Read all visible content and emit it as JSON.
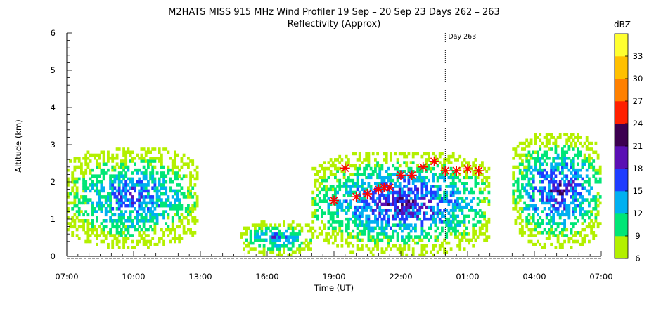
{
  "chart_data": {
    "type": "heatmap",
    "title": "M2HATS MISS 915 MHz Wind Profiler  19 Sep – 20 Sep 23 Days 262 – 263",
    "subtitle": "Reflectivity (Approx)",
    "xlabel": "Time (UT)",
    "ylabel": "Altitude (km)",
    "x_tick_labels": [
      "07:00",
      "10:00",
      "13:00",
      "16:00",
      "19:00",
      "22:00",
      "01:00",
      "04:00",
      "07:00"
    ],
    "x_ticks_hours": [
      0,
      3,
      6,
      9,
      12,
      15,
      18,
      21,
      24
    ],
    "xlim_hours": [
      0,
      24
    ],
    "y_ticks": [
      0,
      1,
      2,
      3,
      4,
      5,
      6
    ],
    "ylim": [
      0,
      6
    ],
    "day_marker": {
      "label": "Day 263",
      "hours": 17
    },
    "colorbar": {
      "unit": "dBZ",
      "bin_edges": [
        6,
        9,
        12,
        15,
        18,
        21,
        24,
        27,
        30,
        33
      ],
      "tick_labels": [
        "6",
        "9",
        "12",
        "15",
        "18",
        "21",
        "24",
        "27",
        "30",
        "33"
      ],
      "colors": [
        "#b3f000",
        "#00e676",
        "#00b0f0",
        "#1e3cff",
        "#5a0fb4",
        "#3c0050",
        "#ff2000",
        "#ff8000",
        "#ffc000",
        "#ffff30"
      ]
    },
    "regions": [
      {
        "name": "morning-layer",
        "x_hours": [
          0,
          5.8
        ],
        "y_km": [
          0.2,
          2.9
        ],
        "peak_dbz": 18
      },
      {
        "name": "afternoon-low",
        "x_hours": [
          7.8,
          11.0
        ],
        "y_km": [
          0.0,
          0.9
        ],
        "peak_dbz": 18
      },
      {
        "name": "evening-layer",
        "x_hours": [
          11.0,
          19.0
        ],
        "y_km": [
          0.0,
          2.8
        ],
        "peak_dbz": 21
      },
      {
        "name": "late-night-layer",
        "x_hours": [
          20.0,
          24.0
        ],
        "y_km": [
          0.2,
          3.3
        ],
        "peak_dbz": 21
      }
    ],
    "series": [
      {
        "marker": "asterisk",
        "color": "#ff0000",
        "points": [
          {
            "x": 12.0,
            "y": 1.5
          },
          {
            "x": 12.5,
            "y": 2.37
          },
          {
            "x": 13.0,
            "y": 1.6
          },
          {
            "x": 13.5,
            "y": 1.68
          },
          {
            "x": 14.0,
            "y": 1.8
          },
          {
            "x": 14.25,
            "y": 1.85
          },
          {
            "x": 14.5,
            "y": 1.85
          },
          {
            "x": 15.0,
            "y": 2.18
          },
          {
            "x": 15.5,
            "y": 2.18
          },
          {
            "x": 16.0,
            "y": 2.4
          },
          {
            "x": 16.5,
            "y": 2.55
          },
          {
            "x": 17.0,
            "y": 2.3
          },
          {
            "x": 17.5,
            "y": 2.3
          },
          {
            "x": 18.0,
            "y": 2.35
          },
          {
            "x": 18.5,
            "y": 2.3
          }
        ]
      }
    ]
  }
}
